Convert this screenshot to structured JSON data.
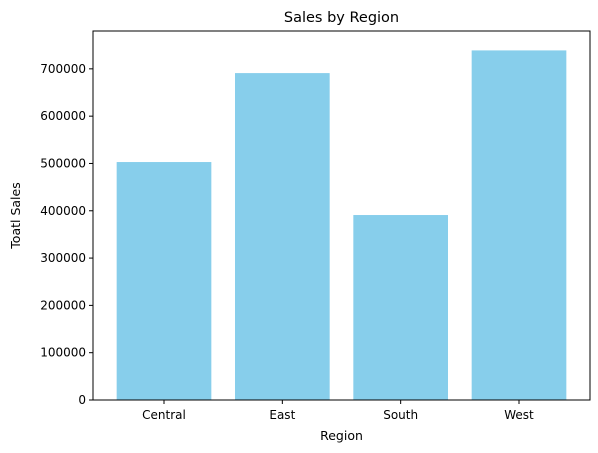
{
  "chart_data": {
    "type": "bar",
    "title": "Sales by Region",
    "xlabel": "Region",
    "ylabel": "Toatl Sales",
    "categories": [
      "Central",
      "East",
      "South",
      "West"
    ],
    "values": [
      503000,
      691000,
      391000,
      739000
    ],
    "ylim": [
      0,
      780000
    ],
    "yticks": [
      0,
      100000,
      200000,
      300000,
      400000,
      500000,
      600000,
      700000
    ],
    "ytick_labels": [
      "0",
      "100000",
      "200000",
      "300000",
      "400000",
      "500000",
      "600000",
      "700000"
    ],
    "bar_color": "#87ceeb",
    "grid": false,
    "legend": "none"
  }
}
